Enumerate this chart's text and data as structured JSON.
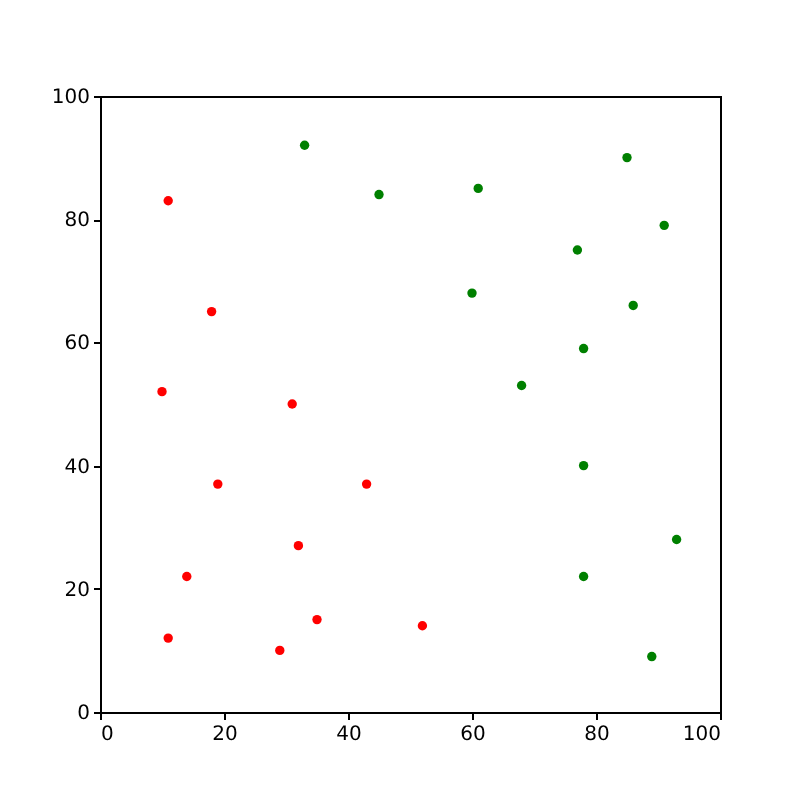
{
  "chart_data": {
    "type": "scatter",
    "xlim": [
      0,
      100
    ],
    "ylim": [
      0,
      100
    ],
    "xticks": [
      0,
      20,
      40,
      60,
      80,
      100
    ],
    "yticks": [
      0,
      20,
      40,
      60,
      80,
      100
    ],
    "grid": false,
    "legend": false,
    "marker": "circle",
    "series": [
      {
        "color": "#ff0000",
        "x": [
          11,
          18,
          10,
          31,
          19,
          43,
          32,
          14,
          35,
          52,
          11,
          29
        ],
        "values": [
          83,
          65,
          52,
          50,
          37,
          37,
          27,
          22,
          15,
          14,
          12,
          10
        ]
      },
      {
        "color": "#008000",
        "x": [
          33,
          45,
          61,
          85,
          91,
          77,
          60,
          86,
          78,
          68,
          78,
          93,
          78,
          89
        ],
        "values": [
          92,
          84,
          85,
          90,
          79,
          75,
          68,
          66,
          59,
          53,
          40,
          28,
          22,
          9
        ]
      }
    ]
  }
}
